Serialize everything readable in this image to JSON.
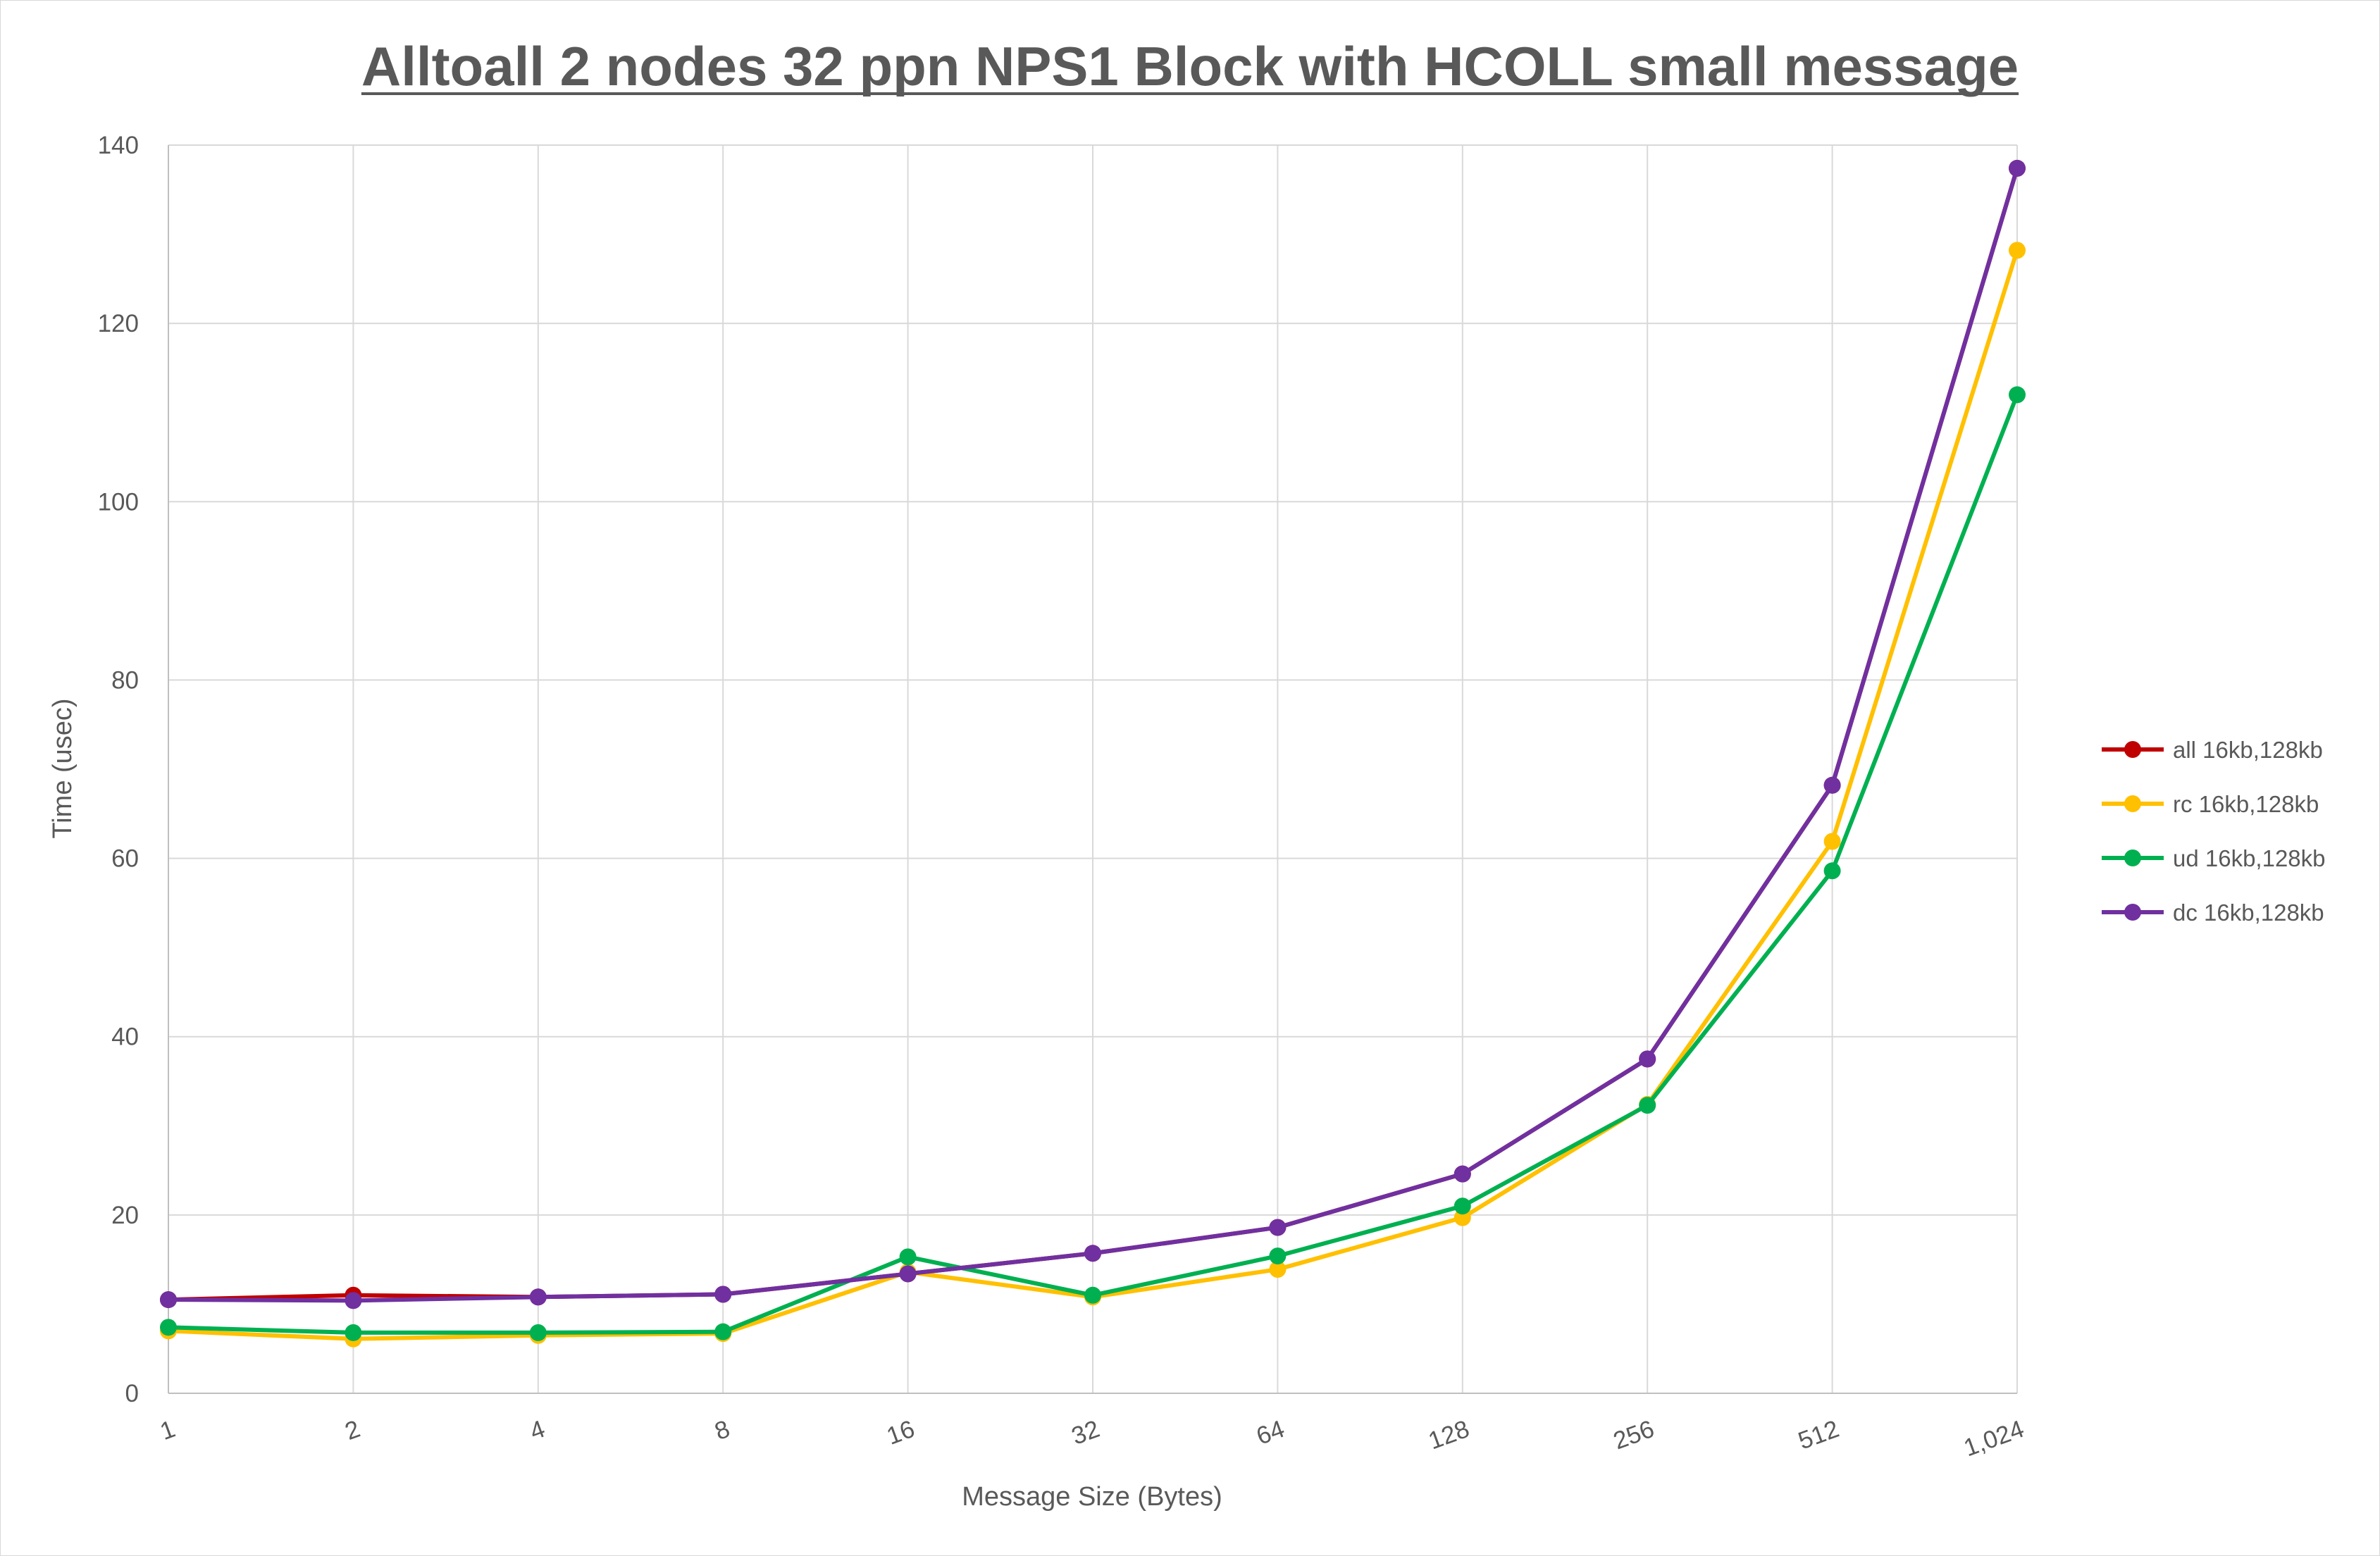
{
  "chart_data": {
    "type": "line",
    "title": "Alltoall 2 nodes 32 ppn NPS1 Block with HCOLL small message",
    "xlabel": "Message Size (Bytes)",
    "ylabel": "Time (usec)",
    "x_scale": "log2",
    "categories": [
      "1",
      "2",
      "4",
      "8",
      "16",
      "32",
      "64",
      "128",
      "256",
      "512",
      "1,024"
    ],
    "ylim": [
      0,
      140
    ],
    "yticks": [
      "0",
      "20",
      "40",
      "60",
      "80",
      "100",
      "120",
      "140"
    ],
    "grid": true,
    "legend_position": "right",
    "series": [
      {
        "name": "all 16kb,128kb",
        "color": "#c00000",
        "values": [
          10.5,
          11.0,
          10.8,
          11.1,
          13.4,
          15.7,
          18.6,
          24.6,
          37.5,
          68.2,
          137.4
        ]
      },
      {
        "name": "rc 16kb,128kb",
        "color": "#ffc000",
        "values": [
          7.0,
          6.1,
          6.5,
          6.7,
          13.6,
          10.8,
          13.9,
          19.7,
          32.4,
          61.9,
          128.2
        ]
      },
      {
        "name": "ud 16kb,128kb",
        "color": "#00b050",
        "values": [
          7.4,
          6.8,
          6.8,
          6.9,
          15.3,
          11.0,
          15.4,
          21.0,
          32.3,
          58.6,
          112.0
        ]
      },
      {
        "name": "dc 16kb,128kb",
        "color": "#7030a0",
        "values": [
          10.5,
          10.4,
          10.8,
          11.1,
          13.4,
          15.7,
          18.6,
          24.6,
          37.5,
          68.2,
          137.4
        ]
      }
    ]
  }
}
